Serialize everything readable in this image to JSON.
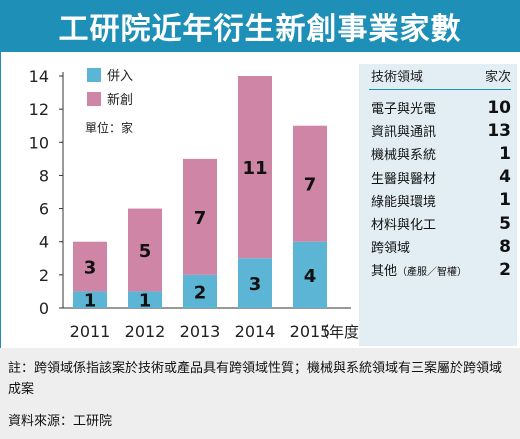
{
  "header": {
    "title": "工研院近年衍生新創事業家數"
  },
  "colors": {
    "title_bg": "#1e90b8",
    "bar_merged": "#5db5d6",
    "bar_new": "#cf85a5",
    "panel_bg": "#e3eef4",
    "footer_bg": "#eeeeee",
    "border": "#1e90b8"
  },
  "chart_data": {
    "type": "bar",
    "stacked": true,
    "categories": [
      "2011",
      "2012",
      "2013",
      "2014",
      "2015"
    ],
    "x_unit_label": "（年度）",
    "series": [
      {
        "name": "併入",
        "values": [
          1,
          1,
          2,
          3,
          4
        ]
      },
      {
        "name": "新創",
        "values": [
          3,
          5,
          7,
          11,
          7
        ]
      }
    ],
    "unit_label": "單位：家",
    "ylim": [
      0,
      14
    ],
    "yticks": [
      0,
      2,
      4,
      6,
      8,
      10,
      12,
      14
    ],
    "grid": false,
    "legend_position": "top-left"
  },
  "table": {
    "headers": [
      "技術領域",
      "家次"
    ],
    "rows": [
      {
        "field": "電子與光電",
        "count": "10"
      },
      {
        "field": "資訊與通訊",
        "count": "13"
      },
      {
        "field": "機械與系統",
        "count": "1"
      },
      {
        "field": "生醫與醫材",
        "count": "4"
      },
      {
        "field": "綠能與環境",
        "count": "1"
      },
      {
        "field": "材料與化工",
        "count": "5"
      },
      {
        "field": "跨領域",
        "count": "8"
      },
      {
        "field": "其他",
        "note": "（產服／智權）",
        "count": "2"
      }
    ]
  },
  "footer": {
    "note": "註：跨領域係指該案於技術或產品具有跨領域性質；機械與系統領域有三案屬於跨領域成案",
    "source": "資料來源：工研院"
  }
}
